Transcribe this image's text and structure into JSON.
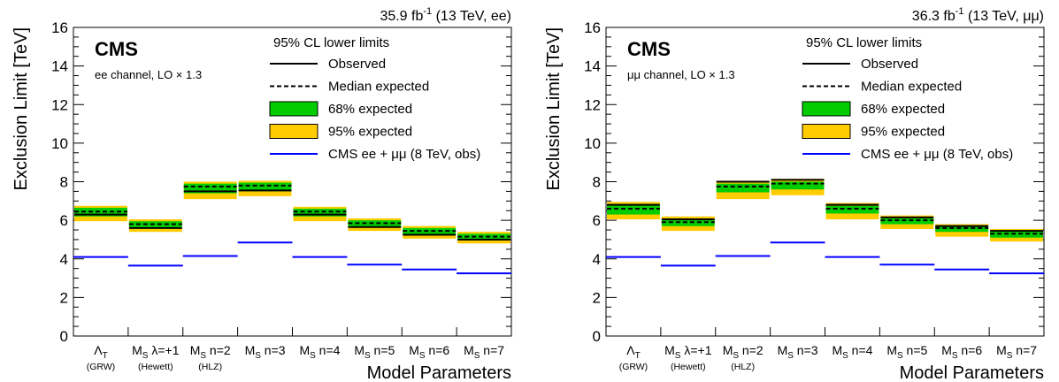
{
  "chart_data": [
    {
      "type": "bar",
      "panel": "ee",
      "luminosity_label": "35.9 fb",
      "luminosity_sup": "-1",
      "energy_label": " (13 TeV, ee)",
      "experiment": "CMS",
      "channel_label": "ee channel, LO × 1.3",
      "ylabel": "Exclusion Limit [TeV]",
      "xlabel": "Model Parameters",
      "ylim": [
        0,
        16
      ],
      "yticks": [
        "0",
        "2",
        "4",
        "6",
        "8",
        "10",
        "12",
        "14",
        "16"
      ],
      "categories": [
        {
          "main": "Λ",
          "sub": "T",
          "note": "(GRW)"
        },
        {
          "main": "M",
          "sub": "S",
          "rest": " λ=+1",
          "note": "(Hewett)"
        },
        {
          "main": "M",
          "sub": "S",
          "rest": " n=2",
          "note": "(HLZ)"
        },
        {
          "main": "M",
          "sub": "S",
          "rest": " n=3",
          "note": ""
        },
        {
          "main": "M",
          "sub": "S",
          "rest": " n=4",
          "note": ""
        },
        {
          "main": "M",
          "sub": "S",
          "rest": " n=5",
          "note": ""
        },
        {
          "main": "M",
          "sub": "S",
          "rest": " n=6",
          "note": ""
        },
        {
          "main": "M",
          "sub": "S",
          "rest": " n=7",
          "note": ""
        }
      ],
      "legend_title": "95% CL lower limits",
      "series": [
        {
          "name": "Observed",
          "values": [
            6.3,
            5.6,
            7.5,
            7.55,
            6.3,
            5.65,
            5.25,
            5.0
          ]
        },
        {
          "name": "Median expected",
          "values": [
            6.45,
            5.8,
            7.75,
            7.8,
            6.45,
            5.85,
            5.45,
            5.15
          ]
        },
        {
          "name": "68% expected",
          "low": [
            6.2,
            5.6,
            7.4,
            7.5,
            6.2,
            5.65,
            5.25,
            5.0
          ],
          "high": [
            6.65,
            5.95,
            7.9,
            7.95,
            6.6,
            6.0,
            5.6,
            5.3
          ]
        },
        {
          "name": "95% expected",
          "low": [
            5.95,
            5.4,
            7.1,
            7.25,
            5.95,
            5.45,
            5.05,
            4.8
          ],
          "high": [
            6.75,
            6.05,
            8.0,
            8.05,
            6.7,
            6.1,
            5.7,
            5.4
          ]
        },
        {
          "name": "CMS ee + μμ (8 TeV, obs)",
          "values": [
            4.1,
            3.65,
            4.15,
            4.85,
            4.1,
            3.7,
            3.45,
            3.25
          ]
        }
      ],
      "colors": {
        "observed": "#000000",
        "expected": "#000000",
        "band68": "#00cc00",
        "band95": "#ffcc00",
        "run1": "#0000ff"
      }
    },
    {
      "type": "bar",
      "panel": "mumu",
      "luminosity_label": "36.3 fb",
      "luminosity_sup": "-1",
      "energy_label": " (13 TeV, μμ)",
      "experiment": "CMS",
      "channel_label": "μμ channel, LO × 1.3",
      "ylabel": "Exclusion Limit [TeV]",
      "xlabel": "Model Parameters",
      "ylim": [
        0,
        16
      ],
      "yticks": [
        "0",
        "2",
        "4",
        "6",
        "8",
        "10",
        "12",
        "14",
        "16"
      ],
      "categories": [
        {
          "main": "Λ",
          "sub": "T",
          "note": "(GRW)"
        },
        {
          "main": "M",
          "sub": "S",
          "rest": " λ=+1",
          "note": "(Hewett)"
        },
        {
          "main": "M",
          "sub": "S",
          "rest": " n=2",
          "note": "(HLZ)"
        },
        {
          "main": "M",
          "sub": "S",
          "rest": " n=3",
          "note": ""
        },
        {
          "main": "M",
          "sub": "S",
          "rest": " n=4",
          "note": ""
        },
        {
          "main": "M",
          "sub": "S",
          "rest": " n=5",
          "note": ""
        },
        {
          "main": "M",
          "sub": "S",
          "rest": " n=6",
          "note": ""
        },
        {
          "main": "M",
          "sub": "S",
          "rest": " n=7",
          "note": ""
        }
      ],
      "legend_title": "95% CL lower limits",
      "series": [
        {
          "name": "Observed",
          "values": [
            6.8,
            6.05,
            8.0,
            8.1,
            6.8,
            6.15,
            5.7,
            5.45
          ]
        },
        {
          "name": "Median expected",
          "values": [
            6.6,
            5.9,
            7.75,
            7.9,
            6.6,
            6.0,
            5.6,
            5.3
          ]
        },
        {
          "name": "68% expected",
          "low": [
            6.3,
            5.7,
            7.45,
            7.6,
            6.35,
            5.8,
            5.4,
            5.1
          ],
          "high": [
            6.8,
            6.05,
            7.9,
            8.0,
            6.75,
            6.1,
            5.7,
            5.45
          ]
        },
        {
          "name": "95% expected",
          "low": [
            6.05,
            5.45,
            7.1,
            7.3,
            6.05,
            5.55,
            5.15,
            4.9
          ],
          "high": [
            6.95,
            6.2,
            8.05,
            8.15,
            6.9,
            6.25,
            5.8,
            5.55
          ]
        },
        {
          "name": "CMS ee + μμ (8 TeV, obs)",
          "values": [
            4.1,
            3.65,
            4.15,
            4.85,
            4.1,
            3.7,
            3.45,
            3.25
          ]
        }
      ],
      "colors": {
        "observed": "#000000",
        "expected": "#000000",
        "band68": "#00cc00",
        "band95": "#ffcc00",
        "run1": "#0000ff"
      }
    }
  ]
}
